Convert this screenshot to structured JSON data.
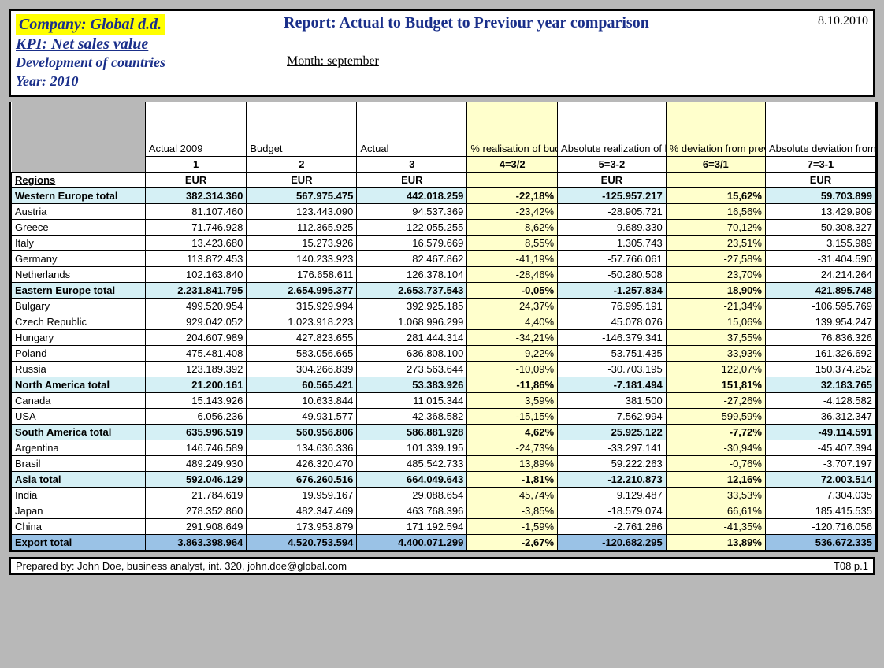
{
  "header": {
    "company": "Company: Global d.d.",
    "report": "Report: Actual to Budget to Previour year comparison",
    "date": "8.10.2010",
    "kpi": "KPI: Net sales value",
    "dev": "Development of countries",
    "month": "Month: september",
    "year": "Year: 2010"
  },
  "columns": {
    "c0": "Regions",
    "c1": "Actual 2009",
    "c2": "Budget",
    "c3": "Actual",
    "c4": "% realisation of budget",
    "c5": "Absolute realization of budget",
    "c6": "% deviation from previous year",
    "c7": "Absolute deviation from previous year",
    "n1": "1",
    "n2": "2",
    "n3": "3",
    "n4": "4=3/2",
    "n5": "5=3-2",
    "n6": "6=3/1",
    "n7": "7=3-1",
    "u": "EUR"
  },
  "rows": [
    {
      "type": "total",
      "lbl": "Western Europe total",
      "a": "382.314.360",
      "b": "567.975.475",
      "c": "442.018.259",
      "d": "-22,18%",
      "e": "-125.957.217",
      "f": "15,62%",
      "g": "59.703.899"
    },
    {
      "type": "plain",
      "lbl": "Austria",
      "a": "81.107.460",
      "b": "123.443.090",
      "c": "94.537.369",
      "d": "-23,42%",
      "e": "-28.905.721",
      "f": "16,56%",
      "g": "13.429.909"
    },
    {
      "type": "plain",
      "lbl": "Greece",
      "a": "71.746.928",
      "b": "112.365.925",
      "c": "122.055.255",
      "d": "8,62%",
      "e": "9.689.330",
      "f": "70,12%",
      "g": "50.308.327"
    },
    {
      "type": "plain",
      "lbl": "Italy",
      "a": "13.423.680",
      "b": "15.273.926",
      "c": "16.579.669",
      "d": "8,55%",
      "e": "1.305.743",
      "f": "23,51%",
      "g": "3.155.989"
    },
    {
      "type": "plain",
      "lbl": "Germany",
      "a": "113.872.453",
      "b": "140.233.923",
      "c": "82.467.862",
      "d": "-41,19%",
      "e": "-57.766.061",
      "f": "-27,58%",
      "g": "-31.404.590"
    },
    {
      "type": "plain",
      "lbl": "Netherlands",
      "a": "102.163.840",
      "b": "176.658.611",
      "c": "126.378.104",
      "d": "-28,46%",
      "e": "-50.280.508",
      "f": "23,70%",
      "g": "24.214.264"
    },
    {
      "type": "total",
      "lbl": "Eastern Europe total",
      "a": "2.231.841.795",
      "b": "2.654.995.377",
      "c": "2.653.737.543",
      "d": "-0,05%",
      "e": "-1.257.834",
      "f": "18,90%",
      "g": "421.895.748"
    },
    {
      "type": "plain",
      "lbl": "Bulgary",
      "a": "499.520.954",
      "b": "315.929.994",
      "c": "392.925.185",
      "d": "24,37%",
      "e": "76.995.191",
      "f": "-21,34%",
      "g": "-106.595.769"
    },
    {
      "type": "plain",
      "lbl": "Czech Republic",
      "a": "929.042.052",
      "b": "1.023.918.223",
      "c": "1.068.996.299",
      "d": "4,40%",
      "e": "45.078.076",
      "f": "15,06%",
      "g": "139.954.247"
    },
    {
      "type": "plain",
      "lbl": "Hungary",
      "a": "204.607.989",
      "b": "427.823.655",
      "c": "281.444.314",
      "d": "-34,21%",
      "e": "-146.379.341",
      "f": "37,55%",
      "g": "76.836.326"
    },
    {
      "type": "plain",
      "lbl": "Poland",
      "a": "475.481.408",
      "b": "583.056.665",
      "c": "636.808.100",
      "d": "9,22%",
      "e": "53.751.435",
      "f": "33,93%",
      "g": "161.326.692"
    },
    {
      "type": "plain",
      "lbl": "Russia",
      "a": "123.189.392",
      "b": "304.266.839",
      "c": "273.563.644",
      "d": "-10,09%",
      "e": "-30.703.195",
      "f": "122,07%",
      "g": "150.374.252"
    },
    {
      "type": "total",
      "lbl": "North America total",
      "a": "21.200.161",
      "b": "60.565.421",
      "c": "53.383.926",
      "d": "-11,86%",
      "e": "-7.181.494",
      "f": "151,81%",
      "g": "32.183.765"
    },
    {
      "type": "plain",
      "lbl": "Canada",
      "a": "15.143.926",
      "b": "10.633.844",
      "c": "11.015.344",
      "d": "3,59%",
      "e": "381.500",
      "f": "-27,26%",
      "g": "-4.128.582"
    },
    {
      "type": "plain",
      "lbl": "USA",
      "a": "6.056.236",
      "b": "49.931.577",
      "c": "42.368.582",
      "d": "-15,15%",
      "e": "-7.562.994",
      "f": "599,59%",
      "g": "36.312.347"
    },
    {
      "type": "total",
      "lbl": "South America total",
      "a": "635.996.519",
      "b": "560.956.806",
      "c": "586.881.928",
      "d": "4,62%",
      "e": "25.925.122",
      "f": "-7,72%",
      "g": "-49.114.591"
    },
    {
      "type": "plain",
      "lbl": "Argentina",
      "a": "146.746.589",
      "b": "134.636.336",
      "c": "101.339.195",
      "d": "-24,73%",
      "e": "-33.297.141",
      "f": "-30,94%",
      "g": "-45.407.394"
    },
    {
      "type": "plain",
      "lbl": "Brasil",
      "a": "489.249.930",
      "b": "426.320.470",
      "c": "485.542.733",
      "d": "13,89%",
      "e": "59.222.263",
      "f": "-0,76%",
      "g": "-3.707.197"
    },
    {
      "type": "total",
      "lbl": "Asia total",
      "a": "592.046.129",
      "b": "676.260.516",
      "c": "664.049.643",
      "d": "-1,81%",
      "e": "-12.210.873",
      "f": "12,16%",
      "g": "72.003.514"
    },
    {
      "type": "plain",
      "lbl": "India",
      "a": "21.784.619",
      "b": "19.959.167",
      "c": "29.088.654",
      "d": "45,74%",
      "e": "9.129.487",
      "f": "33,53%",
      "g": "7.304.035"
    },
    {
      "type": "plain",
      "lbl": "Japan",
      "a": "278.352.860",
      "b": "482.347.469",
      "c": "463.768.396",
      "d": "-3,85%",
      "e": "-18.579.074",
      "f": "66,61%",
      "g": "185.415.535"
    },
    {
      "type": "plain",
      "lbl": "China",
      "a": "291.908.649",
      "b": "173.953.879",
      "c": "171.192.594",
      "d": "-1,59%",
      "e": "-2.761.286",
      "f": "-41,35%",
      "g": "-120.716.056"
    },
    {
      "type": "grand",
      "lbl": "Export total",
      "a": "3.863.398.964",
      "b": "4.520.753.594",
      "c": "4.400.071.299",
      "d": "-2,67%",
      "e": "-120.682.295",
      "f": "13,89%",
      "g": "536.672.335"
    }
  ],
  "footer": {
    "left": "Prepared by: John Doe, business analyst, int. 320, john.doe@global.com",
    "right": "T08  p.1"
  },
  "style": {
    "highlight_yellow": "#ffffcc",
    "total_bg": "#d5f0f5",
    "grand_bg": "#9ac2e6",
    "header_yellow": "#ffff00",
    "header_blue": "#1a2f8a",
    "page_bg": "#b8b8b8"
  }
}
